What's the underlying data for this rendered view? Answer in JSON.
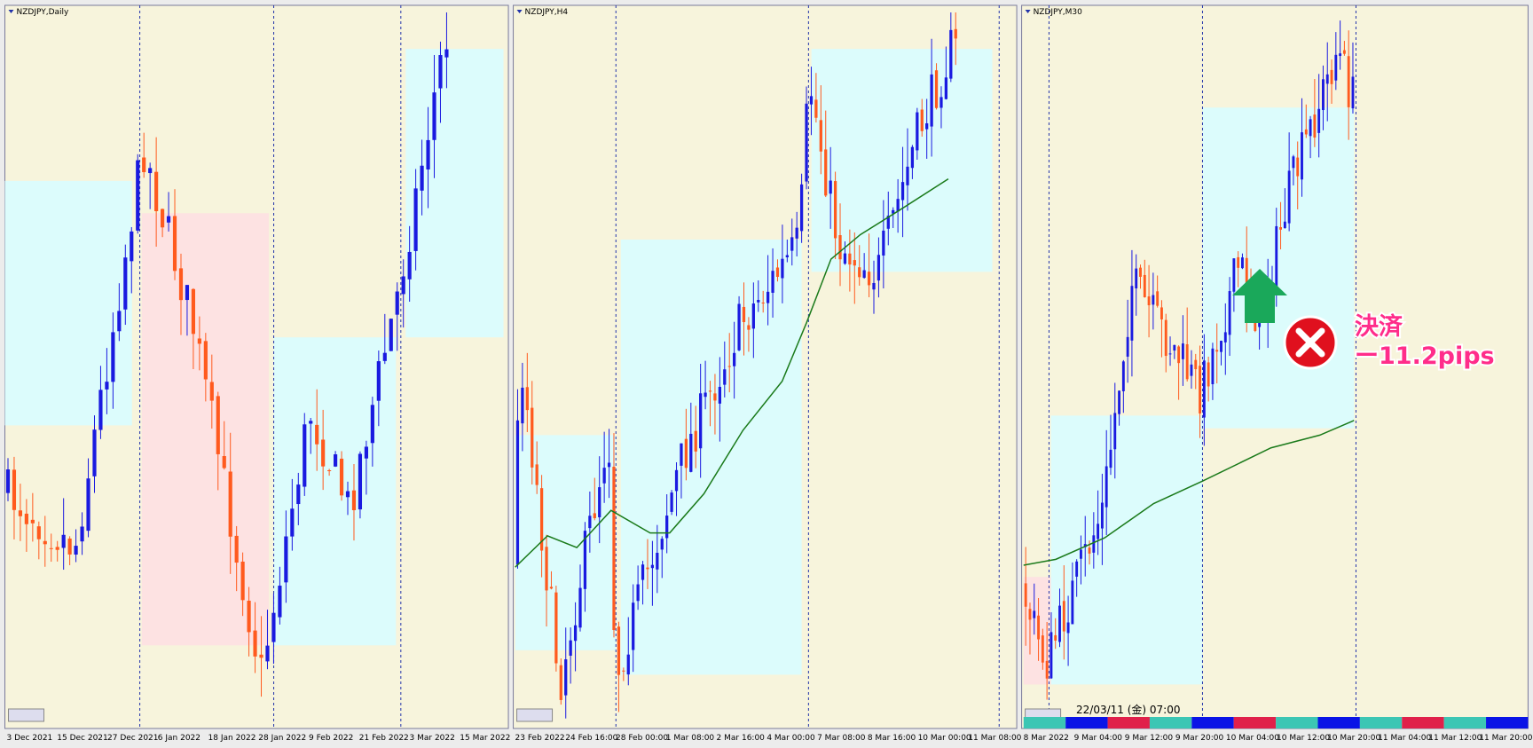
{
  "panels": [
    {
      "title": "NZDJPY,Daily",
      "x_labels": [
        "3 Dec 2021",
        "15 Dec 2021",
        "27 Dec 2021",
        "6 Jan 2022",
        "18 Jan 2022",
        "28 Jan 2022",
        "9 Feb 2022",
        "21 Feb 2022",
        "3 Mar 2022",
        "15 Mar 2022"
      ]
    },
    {
      "title": "NZDJPY,H4",
      "x_labels": [
        "23 Feb 2022",
        "24 Feb 16:00",
        "28 Feb 00:00",
        "1 Mar 08:00",
        "2 Mar 16:00",
        "4 Mar 00:00",
        "7 Mar 08:00",
        "8 Mar 16:00",
        "10 Mar 00:00",
        "11 Mar 08:00"
      ]
    },
    {
      "title": "NZDJPY,M30",
      "x_labels": [
        "8 Mar 2022",
        "9 Mar 04:00",
        "9 Mar 12:00",
        "9 Mar 20:00",
        "10 Mar 04:00",
        "10 Mar 12:00",
        "10 Mar 20:00",
        "11 Mar 04:00",
        "11 Mar 12:00",
        "11 Mar 20:00"
      ]
    }
  ],
  "annotation": {
    "status": "決済",
    "result": "ー11.2pips"
  },
  "footer_time": "22/03/11 (金) 07:00"
}
